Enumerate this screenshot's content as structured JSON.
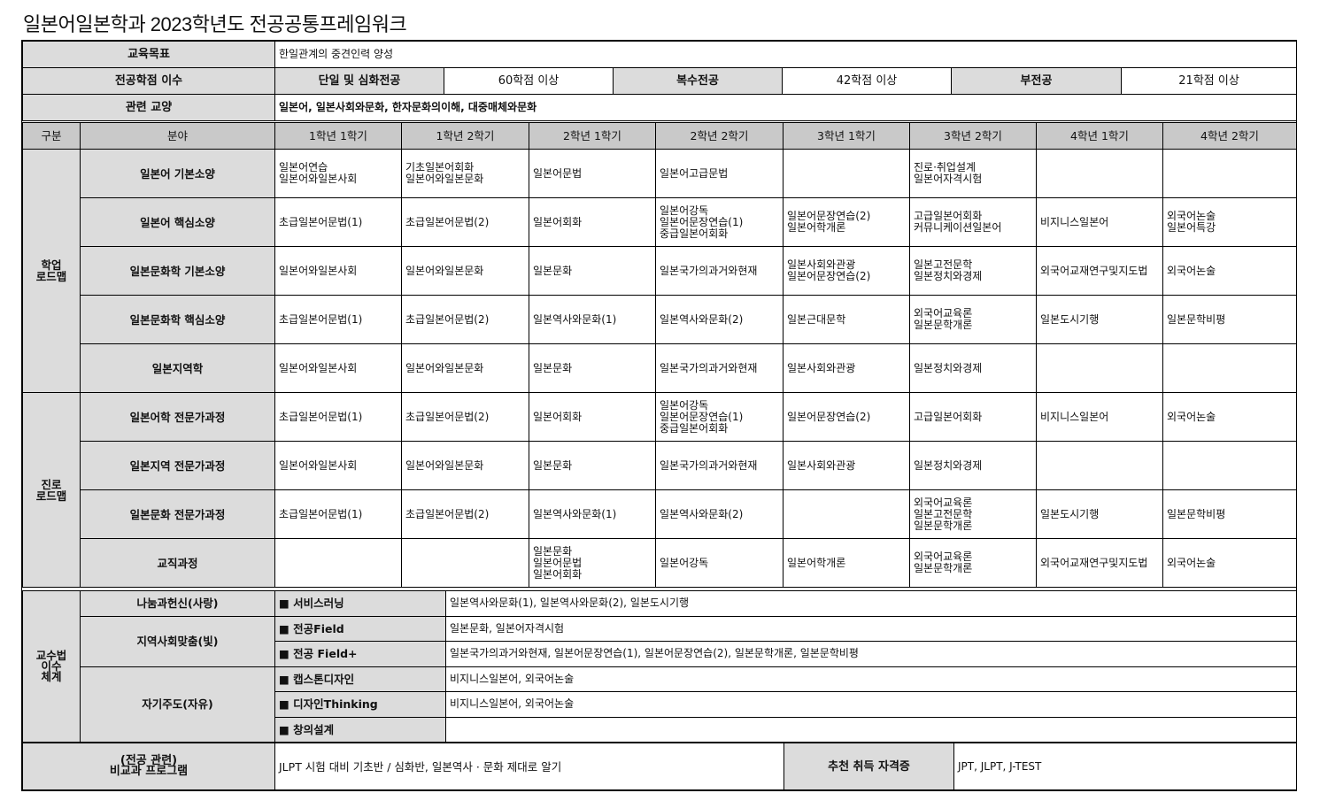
{
  "title": "일본어일본학과 2023학년도 전공공통프레임워크",
  "info": {
    "goal_label": "교육목표",
    "goal_value": "한일관계의 중견인력 양성",
    "credits_label": "전공학점 이수",
    "credits": [
      {
        "type": "단일 및 심화전공",
        "value": "60학점 이상"
      },
      {
        "type": "복수전공",
        "value": "42학점 이상"
      },
      {
        "type": "부전공",
        "value": "21학점 이상"
      }
    ],
    "liberal_label": "관련 교양",
    "liberal_value": "일본어, 일본사회와문화, 한자문화의이해, 대중매체와문화"
  },
  "roadmap": {
    "headers": [
      "구분",
      "분야",
      "1학년 1학기",
      "1학년 2학기",
      "2학년 1학기",
      "2학년 2학기",
      "3학년 1학기",
      "3학년 2학기",
      "4학년 1학기",
      "4학년 2학기"
    ],
    "groups": [
      {
        "label": "학업\n로드맵",
        "rows": [
          {
            "field": "일본어 기본소양",
            "cells": [
              "일본어연습\n일본어와일본사회",
              "기초일본어회화\n일본어와일본문화",
              "일본어문법",
              "일본어고급문법",
              "",
              "진로·취업설계\n일본어자격시험",
              "",
              ""
            ]
          },
          {
            "field": "일본어 핵심소양",
            "cells": [
              "초급일본어문법(1)",
              "초급일본어문법(2)",
              "일본어회화",
              "일본어강독\n일본어문장연습(1)\n중급일본어회화",
              "일본어문장연습(2)\n일본어학개론",
              "고급일본어회화\n커뮤니케이션일본어",
              "비지니스일본어",
              "외국어논술\n일본어특강"
            ]
          },
          {
            "field": "일본문화학 기본소양",
            "cells": [
              "일본어와일본사회",
              "일본어와일본문화",
              "일본문화",
              "일본국가의과거와현재",
              "일본사회와관광\n일본어문장연습(2)",
              "일본고전문학\n일본정치와경제",
              "외국어교재연구및지도법",
              "외국어논술"
            ]
          },
          {
            "field": "일본문화학 핵심소양",
            "cells": [
              "초급일본어문법(1)",
              "초급일본어문법(2)",
              "일본역사와문화(1)",
              "일본역사와문화(2)",
              "일본근대문학",
              "외국어교육론\n일본문학개론",
              "일본도시기행",
              "일본문학비평"
            ]
          },
          {
            "field": "일본지역학",
            "cells": [
              "일본어와일본사회",
              "일본어와일본문화",
              "일본문화",
              "일본국가의과거와현재",
              "일본사회와관광",
              "일본정치와경제",
              "",
              ""
            ]
          }
        ]
      },
      {
        "label": "진로\n로드맵",
        "rows": [
          {
            "field": "일본어학 전문가과정",
            "cells": [
              "초급일본어문법(1)",
              "초급일본어문법(2)",
              "일본어회화",
              "일본어강독\n일본어문장연습(1)\n중급일본어회화",
              "일본어문장연습(2)",
              "고급일본어회화",
              "비지니스일본어",
              "외국어논술"
            ]
          },
          {
            "field": "일본지역 전문가과정",
            "cells": [
              "일본어와일본사회",
              "일본어와일본문화",
              "일본문화",
              "일본국가의과거와현재",
              "일본사회와관광",
              "일본정치와경제",
              "",
              ""
            ]
          },
          {
            "field": "일본문화 전문가과정",
            "cells": [
              "초급일본어문법(1)",
              "초급일본어문법(2)",
              "일본역사와문화(1)",
              "일본역사와문화(2)",
              "",
              "외국어교육론\n일본고전문학\n일본문학개론",
              "일본도시기행",
              "일본문학비평"
            ]
          },
          {
            "field": "교직과정",
            "cells": [
              "",
              "",
              "일본문화\n일본어문법\n일본어회화",
              "일본어강독",
              "일본어학개론",
              "외국어교육론\n일본문학개론",
              "외국어교재연구및지도법",
              "외국어논술"
            ]
          }
        ]
      }
    ]
  },
  "method": {
    "label": "교수법\n이수\n체계",
    "sections": [
      {
        "name": "나눔과헌신(사랑)",
        "items": [
          {
            "tag": "■ 서비스러닝",
            "value": "일본역사와문화(1), 일본역사와문화(2), 일본도시기행"
          }
        ]
      },
      {
        "name": "지역사회맞춤(빛)",
        "items": [
          {
            "tag": "■ 전공Field",
            "value": "일본문화, 일본어자격시험"
          },
          {
            "tag": "■ 전공 Field+",
            "value": "일본국가의과거와현재, 일본어문장연습(1), 일본어문장연습(2), 일본문학개론, 일본문학비평"
          }
        ]
      },
      {
        "name": "자기주도(자유)",
        "items": [
          {
            "tag": "■ 캡스톤디자인",
            "value": "비지니스일본어, 외국어논술"
          },
          {
            "tag": "■ 디자인Thinking",
            "value": "비지니스일본어, 외국어논술"
          },
          {
            "tag": "■ 창의설계",
            "value": ""
          }
        ]
      }
    ]
  },
  "extra": {
    "program_label": "(전공 관련)\n비교과 프로그램",
    "program_value": "JLPT 시험 대비 기초반 / 심화반, 일본역사 · 문화 제대로 알기",
    "cert_label": "추천 취득 자격증",
    "cert_value": "JPT, JLPT, J-TEST"
  }
}
